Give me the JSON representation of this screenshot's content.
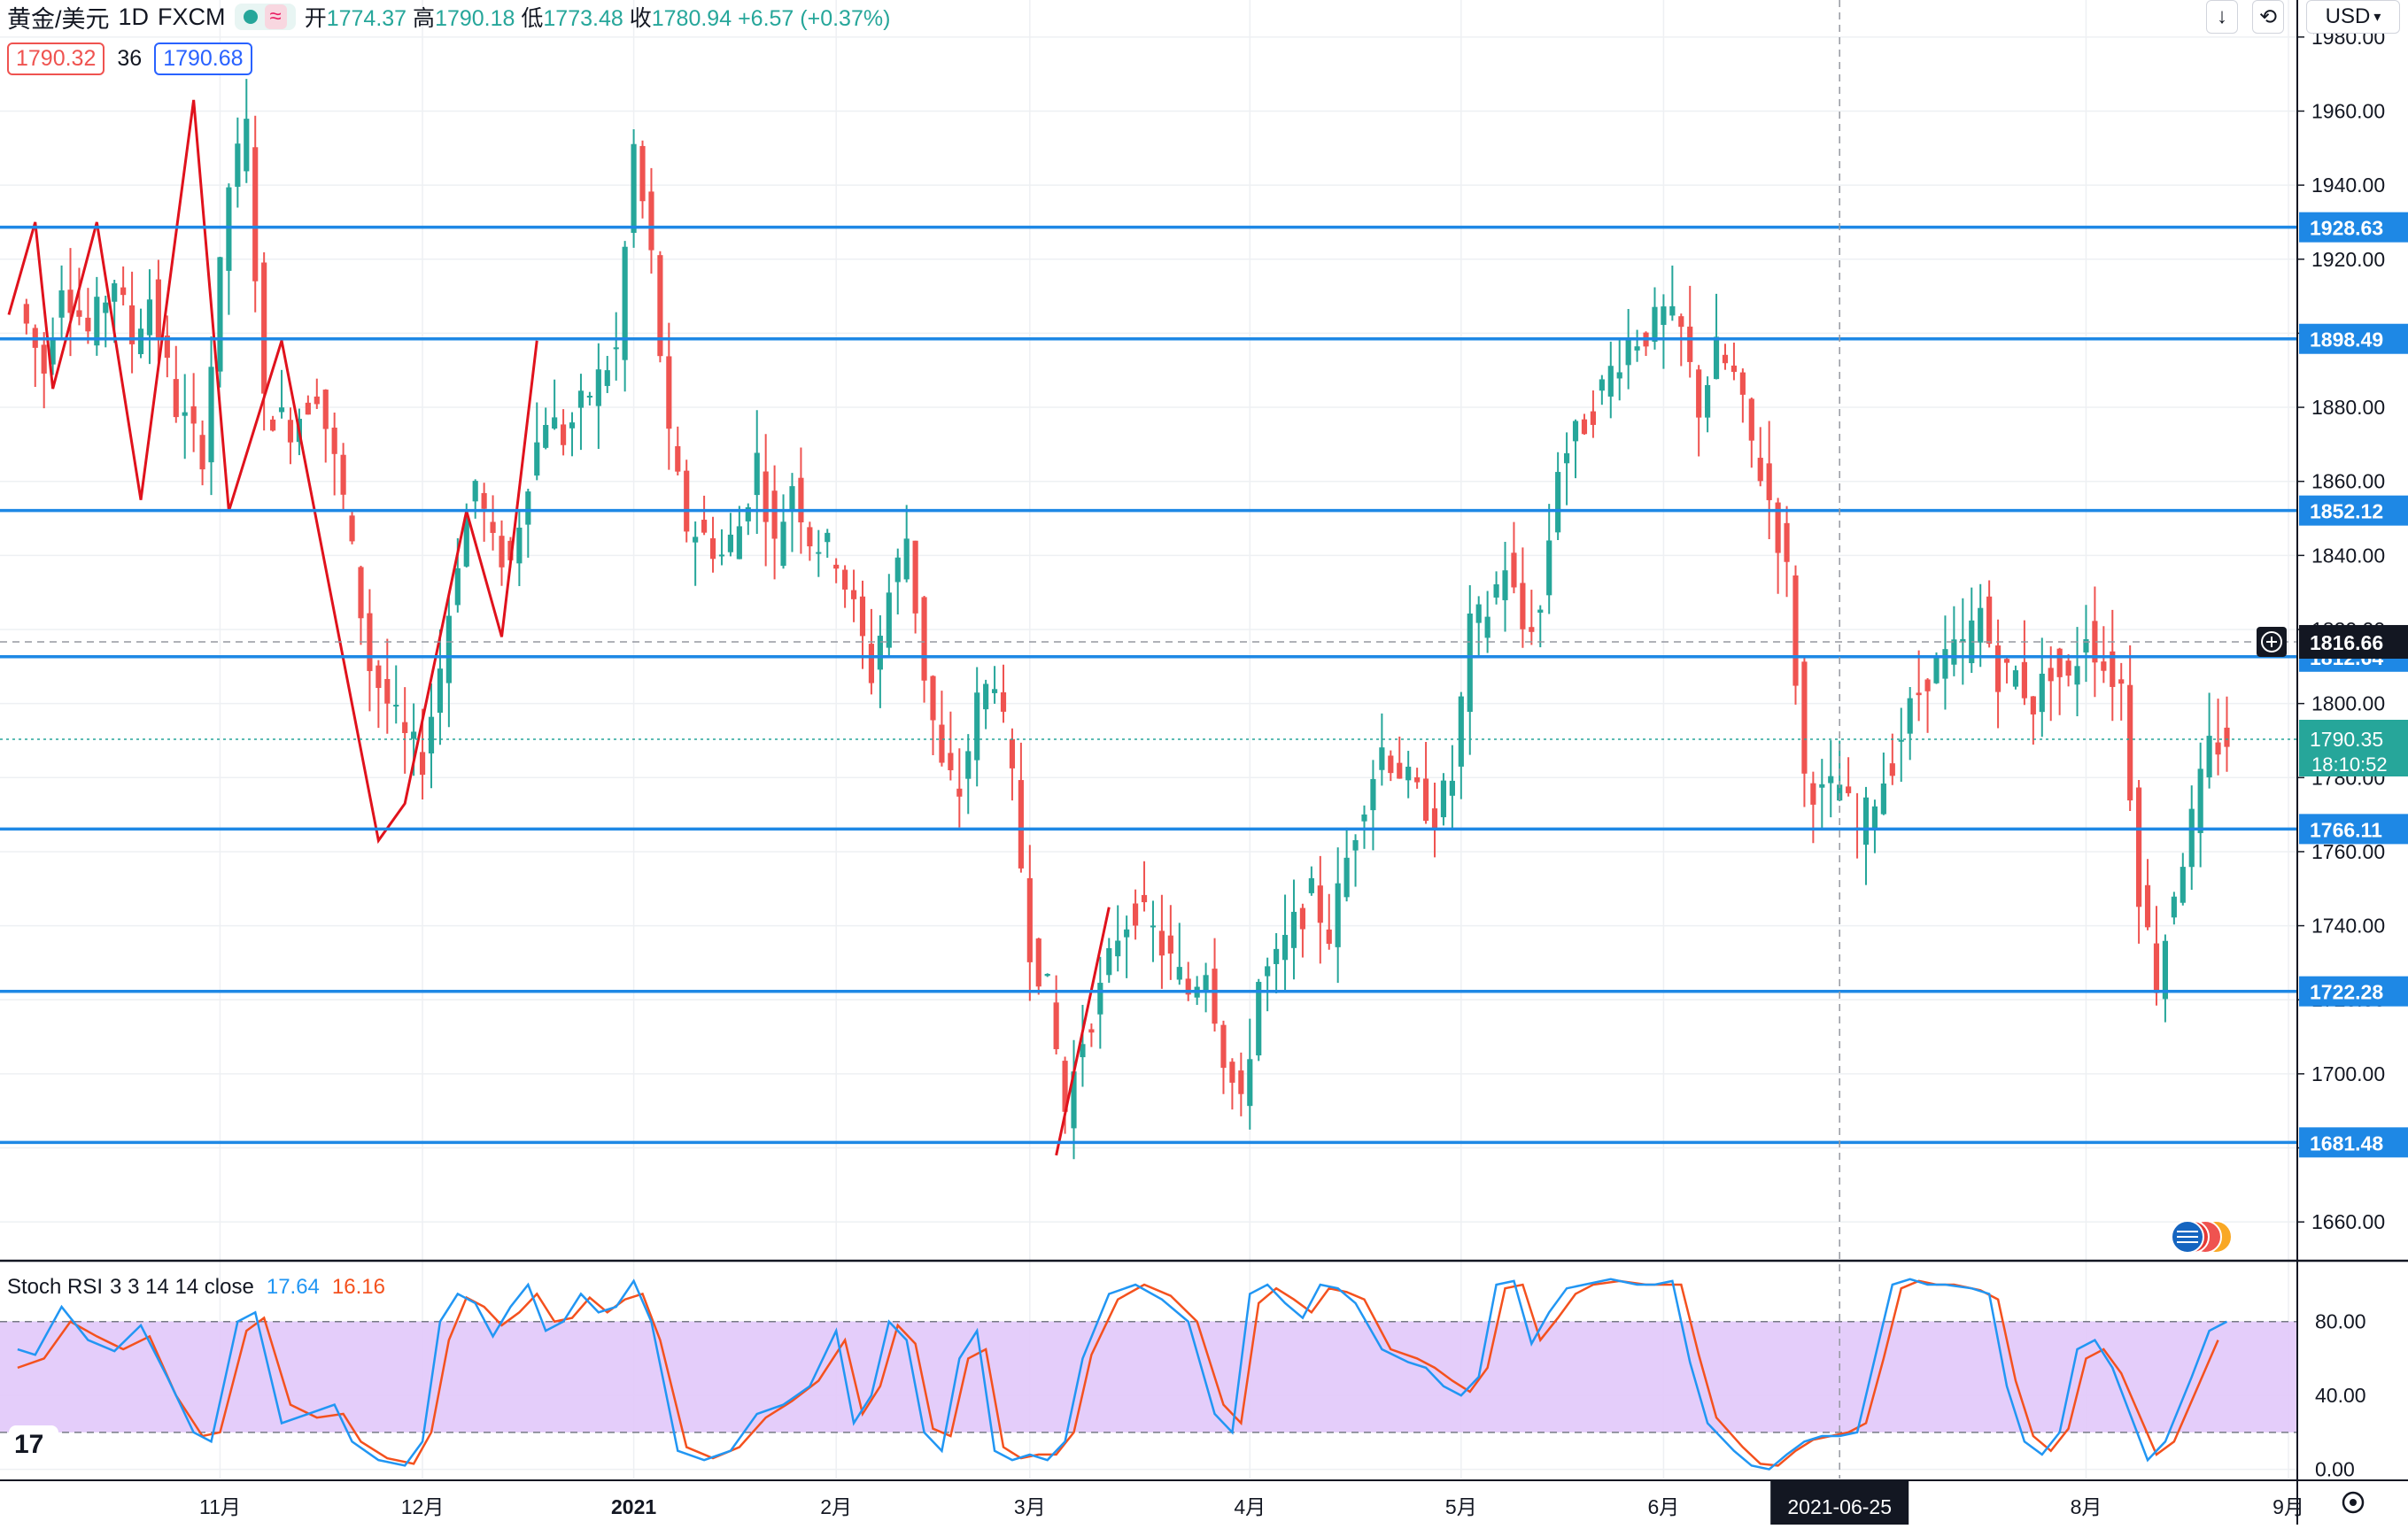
{
  "header": {
    "symbol": "黄金/美元",
    "interval": "1D",
    "source": "FXCM",
    "open_label": "开",
    "open": "1774.37",
    "high_label": "高",
    "high": "1790.18",
    "low_label": "低",
    "low": "1773.48",
    "close_label": "收",
    "close": "1780.94",
    "change": "+6.57 (+0.37%)",
    "wave_icon": "≈"
  },
  "quote": {
    "bid": "1790.32",
    "spread": "36",
    "ask": "1790.68"
  },
  "toolbar": {
    "currency": "USD",
    "currency_icon": "chevron-down-icon"
  },
  "colors": {
    "up": "#26a69a",
    "down": "#ef5350",
    "level": "#1e88e5",
    "zigzag": "#e0121c",
    "stoch_k": "#2196f3",
    "stoch_d": "#f4511e",
    "stoch_band": "#e1c8fa"
  },
  "chart_data": [
    {
      "type": "candlestick",
      "ylim": [
        1650,
        1990
      ],
      "yticks": [
        1660,
        1680,
        1700,
        1720,
        1740,
        1760,
        1780,
        1800,
        1820,
        1840,
        1860,
        1880,
        1900,
        1920,
        1940,
        1960,
        1980
      ],
      "ytick_labels": [
        "1660.00",
        "1680.00",
        "1700.00",
        "1720.00",
        "1740.00",
        "1760.00",
        "1780.00",
        "1800.00",
        "1820.00",
        "1840.00",
        "1860.00",
        "1880.00",
        "1900.00",
        "1920.00",
        "1940.00",
        "1960.00",
        "1980.00"
      ],
      "x_labels": [
        {
          "label": "11月",
          "day": 23
        },
        {
          "label": "12月",
          "day": 46
        },
        {
          "label": "2021",
          "day": 70
        },
        {
          "label": "2月",
          "day": 93
        },
        {
          "label": "3月",
          "day": 115
        },
        {
          "label": "4月",
          "day": 140
        },
        {
          "label": "5月",
          "day": 164
        },
        {
          "label": "6月",
          "day": 187
        },
        {
          "label": "8月",
          "day": 235
        },
        {
          "label": "9月",
          "day": 258
        }
      ],
      "crosshair_date": "2021-06-25",
      "crosshair_day": 207,
      "horizontal_levels": [
        "1928.63",
        "1898.49",
        "1852.12",
        "1812.64",
        "1766.11",
        "1722.28",
        "1681.48"
      ],
      "crosshair_price": "1816.66",
      "last_price": "1790.35",
      "countdown": "18:10:52",
      "close_points": [
        [
          0,
          1908
        ],
        [
          3,
          1890
        ],
        [
          5,
          1915
        ],
        [
          8,
          1900
        ],
        [
          11,
          1915
        ],
        [
          13,
          1898
        ],
        [
          15,
          1910
        ],
        [
          18,
          1880
        ],
        [
          21,
          1868
        ],
        [
          24,
          1940
        ],
        [
          26,
          1955
        ],
        [
          28,
          1880
        ],
        [
          31,
          1875
        ],
        [
          34,
          1885
        ],
        [
          37,
          1855
        ],
        [
          40,
          1810
        ],
        [
          42,
          1800
        ],
        [
          44,
          1790
        ],
        [
          46,
          1785
        ],
        [
          48,
          1810
        ],
        [
          50,
          1840
        ],
        [
          52,
          1860
        ],
        [
          54,
          1842
        ],
        [
          56,
          1838
        ],
        [
          58,
          1862
        ],
        [
          60,
          1878
        ],
        [
          62,
          1872
        ],
        [
          64,
          1880
        ],
        [
          66,
          1888
        ],
        [
          68,
          1895
        ],
        [
          70,
          1950
        ],
        [
          72,
          1920
        ],
        [
          74,
          1870
        ],
        [
          76,
          1848
        ],
        [
          78,
          1845
        ],
        [
          80,
          1840
        ],
        [
          82,
          1848
        ],
        [
          84,
          1866
        ],
        [
          86,
          1842
        ],
        [
          88,
          1860
        ],
        [
          90,
          1845
        ],
        [
          93,
          1840
        ],
        [
          95,
          1825
        ],
        [
          97,
          1808
        ],
        [
          99,
          1830
        ],
        [
          101,
          1845
        ],
        [
          103,
          1808
        ],
        [
          105,
          1782
        ],
        [
          107,
          1776
        ],
        [
          109,
          1800
        ],
        [
          111,
          1808
        ],
        [
          113,
          1778
        ],
        [
          115,
          1735
        ],
        [
          117,
          1722
        ],
        [
          119,
          1690
        ],
        [
          121,
          1710
        ],
        [
          123,
          1722
        ],
        [
          125,
          1738
        ],
        [
          127,
          1745
        ],
        [
          129,
          1738
        ],
        [
          131,
          1730
        ],
        [
          133,
          1722
        ],
        [
          135,
          1730
        ],
        [
          137,
          1705
        ],
        [
          139,
          1690
        ],
        [
          141,
          1725
        ],
        [
          143,
          1730
        ],
        [
          145,
          1740
        ],
        [
          147,
          1748
        ],
        [
          149,
          1738
        ],
        [
          151,
          1758
        ],
        [
          153,
          1775
        ],
        [
          155,
          1788
        ],
        [
          157,
          1782
        ],
        [
          159,
          1775
        ],
        [
          161,
          1770
        ],
        [
          163,
          1780
        ],
        [
          165,
          1820
        ],
        [
          167,
          1825
        ],
        [
          169,
          1838
        ],
        [
          171,
          1820
        ],
        [
          173,
          1825
        ],
        [
          175,
          1865
        ],
        [
          177,
          1872
        ],
        [
          179,
          1880
        ],
        [
          181,
          1890
        ],
        [
          183,
          1898
        ],
        [
          185,
          1900
        ],
        [
          187,
          1905
        ],
        [
          189,
          1900
        ],
        [
          191,
          1880
        ],
        [
          193,
          1895
        ],
        [
          195,
          1888
        ],
        [
          197,
          1870
        ],
        [
          199,
          1855
        ],
        [
          201,
          1835
        ],
        [
          203,
          1780
        ],
        [
          205,
          1775
        ],
        [
          207,
          1778
        ],
        [
          209,
          1765
        ],
        [
          211,
          1775
        ],
        [
          213,
          1785
        ],
        [
          215,
          1798
        ],
        [
          217,
          1808
        ],
        [
          219,
          1812
        ],
        [
          221,
          1815
        ],
        [
          223,
          1825
        ],
        [
          225,
          1808
        ],
        [
          227,
          1808
        ],
        [
          229,
          1800
        ],
        [
          231,
          1810
        ],
        [
          233,
          1805
        ],
        [
          235,
          1820
        ],
        [
          237,
          1810
        ],
        [
          239,
          1805
        ],
        [
          241,
          1750
        ],
        [
          243,
          1725
        ],
        [
          245,
          1750
        ],
        [
          247,
          1768
        ],
        [
          249,
          1788
        ],
        [
          251,
          1790
        ]
      ]
    },
    {
      "type": "line",
      "indicator_name": "Stoch RSI",
      "params": "3 3 14 14 close",
      "k_value": "17.64",
      "d_value": "16.16",
      "ylim": [
        -5,
        112
      ],
      "yticks": [
        0,
        40,
        80
      ],
      "ytick_labels": [
        "0.00",
        "40.00",
        "80.00"
      ],
      "band": [
        20,
        80
      ],
      "k_points": [
        [
          0,
          65
        ],
        [
          2,
          62
        ],
        [
          5,
          88
        ],
        [
          8,
          70
        ],
        [
          11,
          64
        ],
        [
          14,
          78
        ],
        [
          17,
          50
        ],
        [
          20,
          20
        ],
        [
          22,
          15
        ],
        [
          25,
          80
        ],
        [
          27,
          85
        ],
        [
          30,
          25
        ],
        [
          33,
          30
        ],
        [
          36,
          35
        ],
        [
          38,
          15
        ],
        [
          41,
          5
        ],
        [
          44,
          2
        ],
        [
          46,
          15
        ],
        [
          48,
          80
        ],
        [
          50,
          95
        ],
        [
          52,
          90
        ],
        [
          54,
          72
        ],
        [
          56,
          88
        ],
        [
          58,
          100
        ],
        [
          60,
          75
        ],
        [
          62,
          80
        ],
        [
          64,
          95
        ],
        [
          66,
          85
        ],
        [
          68,
          88
        ],
        [
          70,
          102
        ],
        [
          72,
          80
        ],
        [
          75,
          10
        ],
        [
          78,
          5
        ],
        [
          81,
          10
        ],
        [
          84,
          30
        ],
        [
          87,
          35
        ],
        [
          90,
          45
        ],
        [
          93,
          75
        ],
        [
          95,
          25
        ],
        [
          97,
          40
        ],
        [
          99,
          80
        ],
        [
          101,
          70
        ],
        [
          103,
          20
        ],
        [
          105,
          10
        ],
        [
          107,
          60
        ],
        [
          109,
          75
        ],
        [
          111,
          10
        ],
        [
          113,
          5
        ],
        [
          115,
          8
        ],
        [
          117,
          5
        ],
        [
          119,
          15
        ],
        [
          121,
          60
        ],
        [
          124,
          95
        ],
        [
          127,
          100
        ],
        [
          130,
          92
        ],
        [
          133,
          80
        ],
        [
          136,
          30
        ],
        [
          138,
          20
        ],
        [
          140,
          95
        ],
        [
          142,
          100
        ],
        [
          144,
          90
        ],
        [
          146,
          82
        ],
        [
          148,
          100
        ],
        [
          150,
          98
        ],
        [
          152,
          90
        ],
        [
          155,
          65
        ],
        [
          158,
          58
        ],
        [
          160,
          55
        ],
        [
          162,
          45
        ],
        [
          164,
          40
        ],
        [
          166,
          50
        ],
        [
          168,
          100
        ],
        [
          170,
          102
        ],
        [
          172,
          68
        ],
        [
          174,
          85
        ],
        [
          176,
          98
        ],
        [
          178,
          100
        ],
        [
          181,
          103
        ],
        [
          184,
          100
        ],
        [
          186,
          100
        ],
        [
          188,
          102
        ],
        [
          190,
          58
        ],
        [
          192,
          25
        ],
        [
          195,
          10
        ],
        [
          197,
          2
        ],
        [
          199,
          0
        ],
        [
          201,
          8
        ],
        [
          203,
          15
        ],
        [
          205,
          18
        ],
        [
          207,
          18
        ],
        [
          209,
          20
        ],
        [
          211,
          60
        ],
        [
          213,
          100
        ],
        [
          215,
          103
        ],
        [
          217,
          100
        ],
        [
          219,
          100
        ],
        [
          222,
          98
        ],
        [
          224,
          95
        ],
        [
          226,
          45
        ],
        [
          228,
          15
        ],
        [
          230,
          8
        ],
        [
          232,
          20
        ],
        [
          234,
          65
        ],
        [
          236,
          70
        ],
        [
          238,
          55
        ],
        [
          240,
          30
        ],
        [
          242,
          5
        ],
        [
          244,
          15
        ],
        [
          247,
          50
        ],
        [
          249,
          75
        ],
        [
          251,
          80
        ]
      ],
      "d_points": [
        [
          0,
          55
        ],
        [
          3,
          60
        ],
        [
          6,
          80
        ],
        [
          9,
          72
        ],
        [
          12,
          65
        ],
        [
          15,
          72
        ],
        [
          18,
          40
        ],
        [
          21,
          18
        ],
        [
          23,
          20
        ],
        [
          26,
          75
        ],
        [
          28,
          82
        ],
        [
          31,
          35
        ],
        [
          34,
          28
        ],
        [
          37,
          30
        ],
        [
          39,
          15
        ],
        [
          42,
          6
        ],
        [
          45,
          3
        ],
        [
          47,
          20
        ],
        [
          49,
          70
        ],
        [
          51,
          93
        ],
        [
          53,
          88
        ],
        [
          55,
          78
        ],
        [
          57,
          85
        ],
        [
          59,
          95
        ],
        [
          61,
          80
        ],
        [
          63,
          82
        ],
        [
          65,
          93
        ],
        [
          67,
          85
        ],
        [
          69,
          92
        ],
        [
          71,
          95
        ],
        [
          73,
          70
        ],
        [
          76,
          12
        ],
        [
          79,
          6
        ],
        [
          82,
          12
        ],
        [
          85,
          28
        ],
        [
          88,
          37
        ],
        [
          91,
          48
        ],
        [
          94,
          70
        ],
        [
          96,
          30
        ],
        [
          98,
          45
        ],
        [
          100,
          78
        ],
        [
          102,
          68
        ],
        [
          104,
          22
        ],
        [
          106,
          18
        ],
        [
          108,
          60
        ],
        [
          110,
          65
        ],
        [
          112,
          12
        ],
        [
          114,
          6
        ],
        [
          116,
          8
        ],
        [
          118,
          8
        ],
        [
          120,
          20
        ],
        [
          122,
          62
        ],
        [
          125,
          92
        ],
        [
          128,
          100
        ],
        [
          131,
          94
        ],
        [
          134,
          80
        ],
        [
          137,
          35
        ],
        [
          139,
          25
        ],
        [
          141,
          90
        ],
        [
          143,
          98
        ],
        [
          145,
          92
        ],
        [
          147,
          85
        ],
        [
          149,
          98
        ],
        [
          151,
          96
        ],
        [
          153,
          92
        ],
        [
          156,
          65
        ],
        [
          159,
          60
        ],
        [
          161,
          55
        ],
        [
          163,
          48
        ],
        [
          165,
          42
        ],
        [
          167,
          55
        ],
        [
          169,
          98
        ],
        [
          171,
          100
        ],
        [
          173,
          70
        ],
        [
          175,
          82
        ],
        [
          177,
          95
        ],
        [
          179,
          100
        ],
        [
          182,
          102
        ],
        [
          185,
          100
        ],
        [
          187,
          100
        ],
        [
          189,
          100
        ],
        [
          191,
          62
        ],
        [
          193,
          28
        ],
        [
          196,
          12
        ],
        [
          198,
          3
        ],
        [
          200,
          2
        ],
        [
          202,
          10
        ],
        [
          204,
          16
        ],
        [
          206,
          18
        ],
        [
          208,
          20
        ],
        [
          210,
          25
        ],
        [
          212,
          60
        ],
        [
          214,
          98
        ],
        [
          216,
          102
        ],
        [
          218,
          100
        ],
        [
          220,
          100
        ],
        [
          223,
          97
        ],
        [
          225,
          92
        ],
        [
          227,
          48
        ],
        [
          229,
          18
        ],
        [
          231,
          10
        ],
        [
          233,
          22
        ],
        [
          235,
          60
        ],
        [
          237,
          65
        ],
        [
          239,
          52
        ],
        [
          241,
          30
        ],
        [
          243,
          8
        ],
        [
          245,
          15
        ],
        [
          248,
          48
        ],
        [
          250,
          70
        ]
      ]
    }
  ]
}
